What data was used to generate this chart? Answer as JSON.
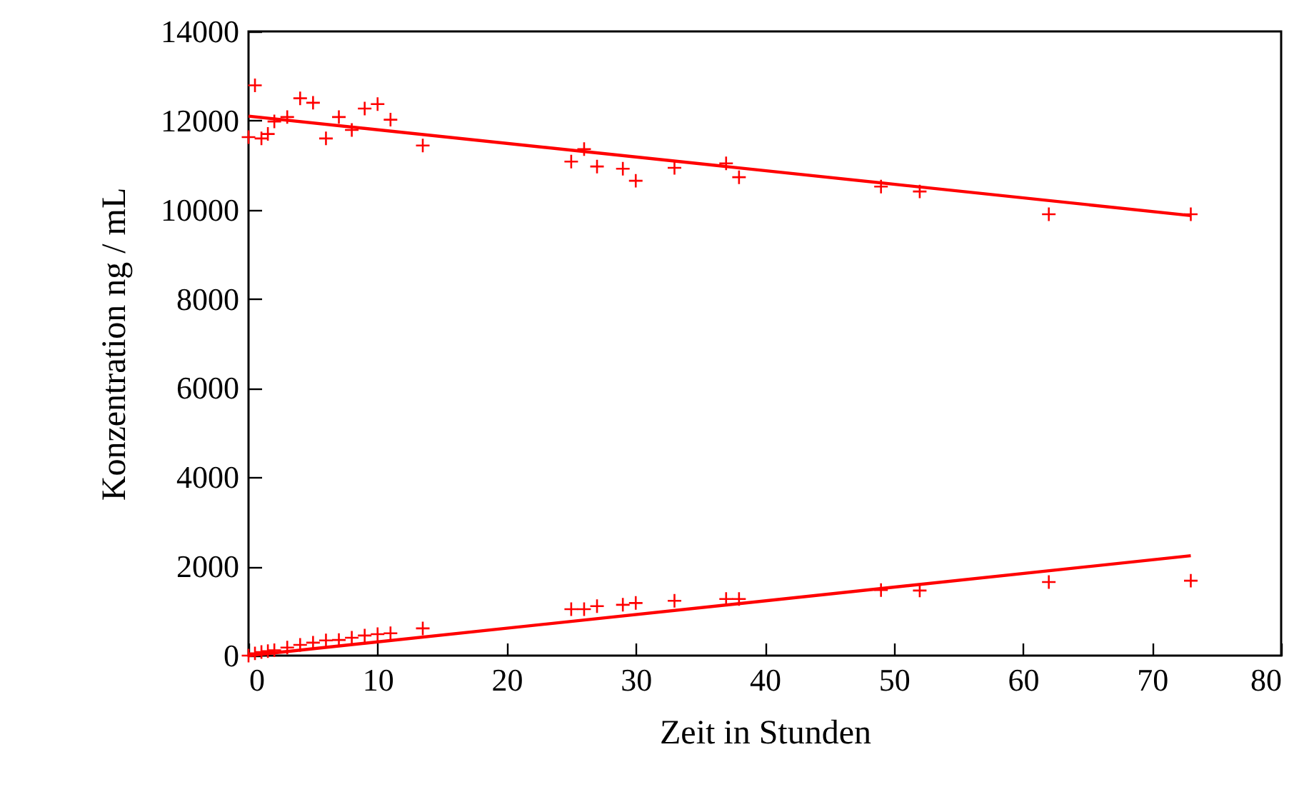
{
  "chart_data": {
    "type": "scatter",
    "xlabel": "Zeit in Stunden",
    "ylabel": "Konzentration ng / mL",
    "xlim": [
      0,
      80
    ],
    "xticks": [
      0,
      10,
      20,
      30,
      40,
      50,
      60,
      70,
      80
    ],
    "ylim": [
      0,
      14000
    ],
    "yticks": [
      0,
      2000,
      4000,
      6000,
      8000,
      10000,
      12000,
      14000
    ],
    "grid": false,
    "series": [
      {
        "color": "#ff0000",
        "marker": "cross",
        "x": [
          0,
          0.5,
          1,
          1.5,
          2,
          3,
          4,
          5,
          6,
          7,
          8,
          9,
          10,
          11,
          13.5,
          25,
          26,
          27,
          29,
          30,
          33,
          37,
          38,
          49,
          52,
          62,
          73
        ],
        "values": [
          11630,
          12790,
          11600,
          11700,
          11980,
          12080,
          12500,
          12400,
          11600,
          12080,
          11790,
          12270,
          12370,
          12020,
          11440,
          11080,
          11360,
          10970,
          10920,
          10650,
          10940,
          11040,
          10730,
          10520,
          10410,
          9900,
          9900
        ]
      },
      {
        "color": "#ff0000",
        "marker": "cross",
        "x": [
          0,
          0.5,
          1,
          1.5,
          2,
          3,
          4,
          5,
          6,
          7,
          8,
          9,
          10,
          11,
          13.5,
          25,
          26,
          27,
          29,
          30,
          33,
          37,
          38,
          49,
          52,
          62,
          73
        ],
        "values": [
          0,
          50,
          80,
          100,
          120,
          180,
          240,
          290,
          340,
          350,
          400,
          450,
          480,
          500,
          610,
          1040,
          1040,
          1110,
          1140,
          1180,
          1230,
          1270,
          1270,
          1470,
          1460,
          1650,
          1680
        ]
      },
      {
        "type": "line",
        "color": "#ff0000",
        "marker": "none",
        "x": [
          0,
          73
        ],
        "values": [
          12100,
          9870
        ]
      },
      {
        "type": "line",
        "color": "#ff0000",
        "marker": "none",
        "x": [
          0,
          73
        ],
        "values": [
          0,
          2240
        ]
      }
    ]
  }
}
